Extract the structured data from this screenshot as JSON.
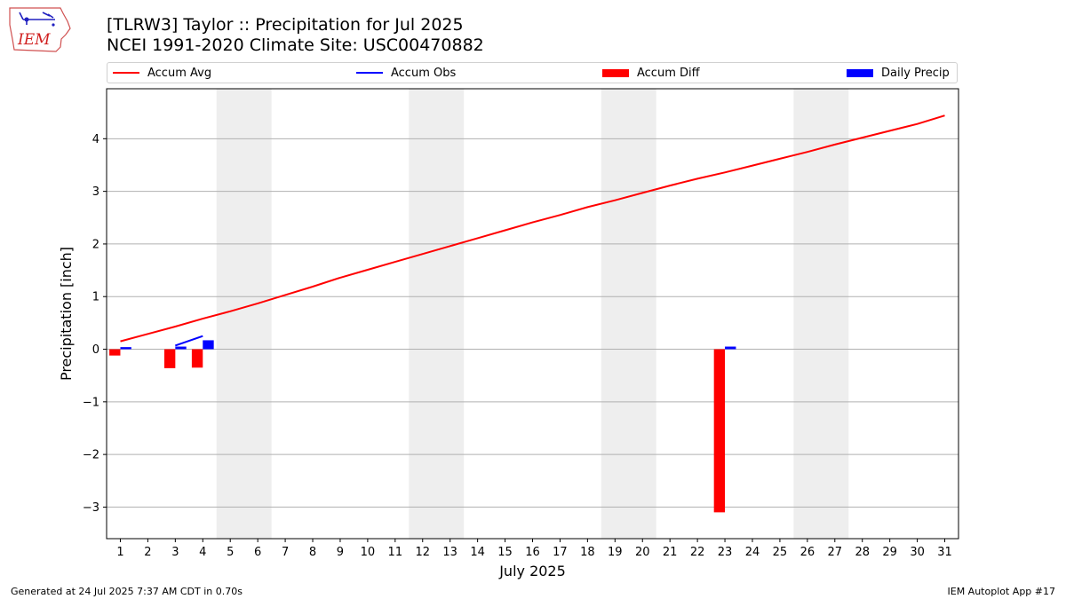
{
  "title_line1": "[TLRW3] Taylor :: Precipitation for Jul 2025",
  "title_line2": "NCEI 1991-2020 Climate Site: USC00470882",
  "logo_text": "IEM",
  "footer_left": "Generated at 24 Jul 2025 7:37 AM CDT in 0.70s",
  "footer_right": "IEM Autoplot App #17",
  "colors": {
    "accum_avg": "#ff0000",
    "accum_obs": "#0000ff",
    "accum_diff": "#ff0000",
    "daily_precip": "#0000ff",
    "weekend_shade": "#eeeeee",
    "grid": "#b0b0b0"
  },
  "legend": [
    {
      "name": "Accum Avg",
      "kind": "line",
      "color": "#ff0000"
    },
    {
      "name": "Accum Obs",
      "kind": "line",
      "color": "#0000ff"
    },
    {
      "name": "Accum Diff",
      "kind": "bar",
      "color": "#ff0000"
    },
    {
      "name": "Daily Precip",
      "kind": "bar",
      "color": "#0000ff"
    }
  ],
  "chart_data": {
    "type": "bar",
    "xlabel": "July 2025",
    "ylabel": "Precipitation [inch]",
    "xlim": [
      0.5,
      31.5
    ],
    "ylim": [
      -3.6,
      4.95
    ],
    "yticks": [
      -3,
      -2,
      -1,
      0,
      1,
      2,
      3,
      4
    ],
    "xticks": [
      1,
      2,
      3,
      4,
      5,
      6,
      7,
      8,
      9,
      10,
      11,
      12,
      13,
      14,
      15,
      16,
      17,
      18,
      19,
      20,
      21,
      22,
      23,
      24,
      25,
      26,
      27,
      28,
      29,
      30,
      31
    ],
    "grid": "horizontal",
    "legend_position": "top",
    "weekends": [
      [
        5,
        6
      ],
      [
        12,
        13
      ],
      [
        19,
        20
      ],
      [
        26,
        27
      ]
    ],
    "series": [
      {
        "name": "Accum Avg",
        "type": "line",
        "x": [
          1,
          2,
          3,
          4,
          5,
          6,
          7,
          8,
          9,
          10,
          11,
          12,
          13,
          14,
          15,
          16,
          17,
          18,
          19,
          20,
          21,
          22,
          23,
          24,
          25,
          26,
          27,
          28,
          29,
          30,
          31
        ],
        "values": [
          0.15,
          0.29,
          0.43,
          0.58,
          0.72,
          0.87,
          1.03,
          1.19,
          1.36,
          1.51,
          1.66,
          1.81,
          1.96,
          2.11,
          2.26,
          2.41,
          2.55,
          2.7,
          2.83,
          2.97,
          3.11,
          3.24,
          3.36,
          3.49,
          3.62,
          3.75,
          3.89,
          4.02,
          4.15,
          4.28,
          4.44
        ]
      },
      {
        "name": "Accum Obs",
        "type": "line",
        "x": [
          3,
          4
        ],
        "values": [
          0.07,
          0.25
        ]
      },
      {
        "name": "Accum Diff",
        "type": "bar",
        "x": [
          1,
          3,
          4,
          23
        ],
        "values": [
          -0.12,
          -0.36,
          -0.35,
          -3.1
        ]
      },
      {
        "name": "Daily Precip",
        "type": "bar",
        "x": [
          1,
          3,
          4,
          23
        ],
        "values": [
          0.04,
          0.05,
          0.17,
          0.05
        ]
      }
    ]
  }
}
